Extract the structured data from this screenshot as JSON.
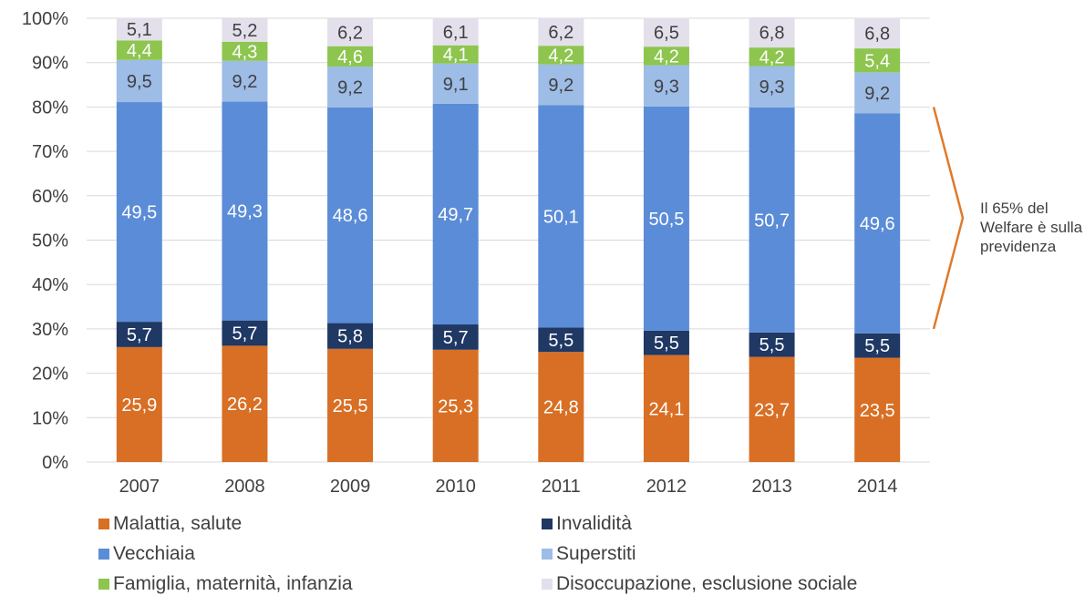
{
  "chart_data": {
    "type": "bar",
    "stacked": true,
    "categories": [
      "2007",
      "2008",
      "2009",
      "2010",
      "2011",
      "2012",
      "2013",
      "2014"
    ],
    "series": [
      {
        "name": "Malattia, salute",
        "color": "#D86F24",
        "values": [
          25.9,
          26.2,
          25.5,
          25.3,
          24.8,
          24.1,
          23.7,
          23.5
        ],
        "labels": [
          "25,9",
          "26,2",
          "25,5",
          "25,3",
          "24,8",
          "24,1",
          "23,7",
          "23,5"
        ]
      },
      {
        "name": "Invalidità",
        "color": "#1F3864",
        "values": [
          5.7,
          5.7,
          5.8,
          5.7,
          5.5,
          5.5,
          5.5,
          5.5
        ],
        "labels": [
          "5,7",
          "5,7",
          "5,8",
          "5,7",
          "5,5",
          "5,5",
          "5,5",
          "5,5"
        ]
      },
      {
        "name": "Vecchiaia",
        "color": "#5B8CD7",
        "values": [
          49.5,
          49.3,
          48.6,
          49.7,
          50.1,
          50.5,
          50.7,
          49.6
        ],
        "labels": [
          "49,5",
          "49,3",
          "48,6",
          "49,7",
          "50,1",
          "50,5",
          "50,7",
          "49,6"
        ]
      },
      {
        "name": "Superstiti",
        "color": "#9DBCE6",
        "values": [
          9.5,
          9.2,
          9.2,
          9.1,
          9.2,
          9.3,
          9.3,
          9.2
        ],
        "labels": [
          "9,5",
          "9,2",
          "9,2",
          "9,1",
          "9,2",
          "9,3",
          "9,3",
          "9,2"
        ]
      },
      {
        "name": "Famiglia, maternità, infanzia",
        "color": "#8DC54F",
        "values": [
          4.4,
          4.3,
          4.6,
          4.1,
          4.2,
          4.2,
          4.2,
          5.4
        ],
        "labels": [
          "4,4",
          "4,3",
          "4,6",
          "4,1",
          "4,2",
          "4,2",
          "4,2",
          "5,4"
        ]
      },
      {
        "name": "Disoccupazione, esclusione sociale",
        "color": "#E3E0EB",
        "values": [
          5.1,
          5.2,
          6.2,
          6.1,
          6.2,
          6.5,
          6.8,
          6.8
        ],
        "labels": [
          "5,1",
          "5,2",
          "6,2",
          "6,1",
          "6,2",
          "6,5",
          "6,8",
          "6,8"
        ]
      }
    ],
    "label_colors": [
      "#ffffff",
      "#ffffff",
      "#ffffff",
      "#404040",
      "#ffffff",
      "#404040"
    ],
    "y_ticks": [
      "0%",
      "10%",
      "20%",
      "30%",
      "40%",
      "50%",
      "60%",
      "70%",
      "80%",
      "90%",
      "100%"
    ],
    "ylim": [
      0,
      100
    ],
    "grid": true,
    "legend_position": "bottom",
    "annotation": {
      "text": "Il 65% del Welfare è sulla previdenza",
      "span": [
        30,
        80
      ],
      "color": "#E07A2B"
    },
    "title": "",
    "xlabel": "",
    "ylabel": ""
  }
}
